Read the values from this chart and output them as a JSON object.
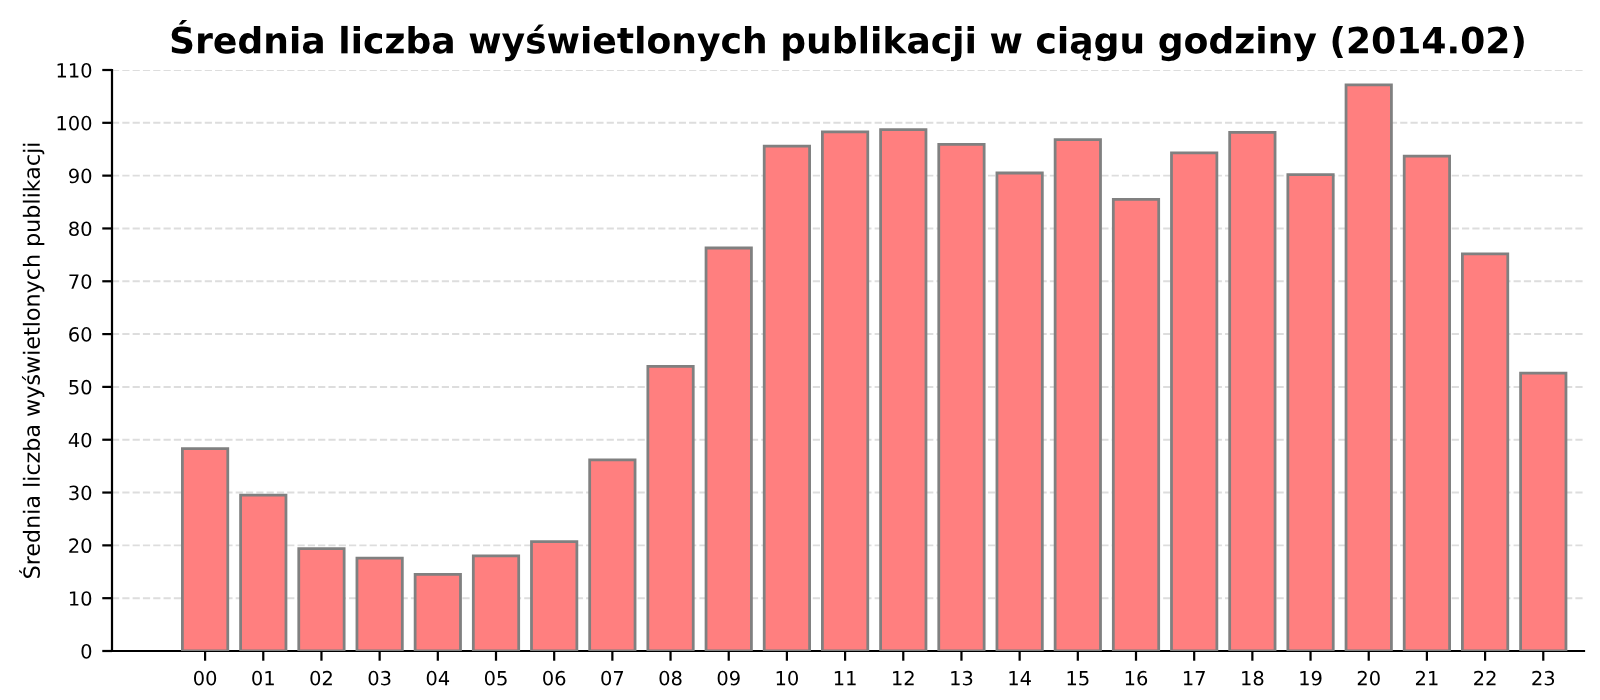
{
  "chart_data": {
    "type": "bar",
    "title": "Średnia liczba wyświetlonych publikacji w ciągu godziny (2014.02)",
    "ylabel": "Średnia liczba wyświetlonych publikacji",
    "categories": [
      "00",
      "01",
      "02",
      "03",
      "04",
      "05",
      "06",
      "07",
      "08",
      "09",
      "10",
      "11",
      "12",
      "13",
      "14",
      "15",
      "16",
      "17",
      "18",
      "19",
      "20",
      "21",
      "22",
      "23"
    ],
    "values": [
      38.3,
      29.5,
      19.4,
      17.6,
      14.5,
      18.0,
      20.7,
      36.2,
      53.9,
      76.3,
      95.6,
      98.3,
      98.7,
      95.9,
      90.5,
      96.8,
      85.5,
      94.3,
      98.2,
      90.2,
      107.2,
      93.7,
      75.2,
      52.6
    ],
    "color": "#ff7f7f",
    "ylim": [
      0,
      110
    ],
    "yticks": [
      0,
      10,
      20,
      30,
      40,
      50,
      60,
      70,
      80,
      90,
      100,
      110
    ],
    "grid": "y",
    "legend": false
  }
}
